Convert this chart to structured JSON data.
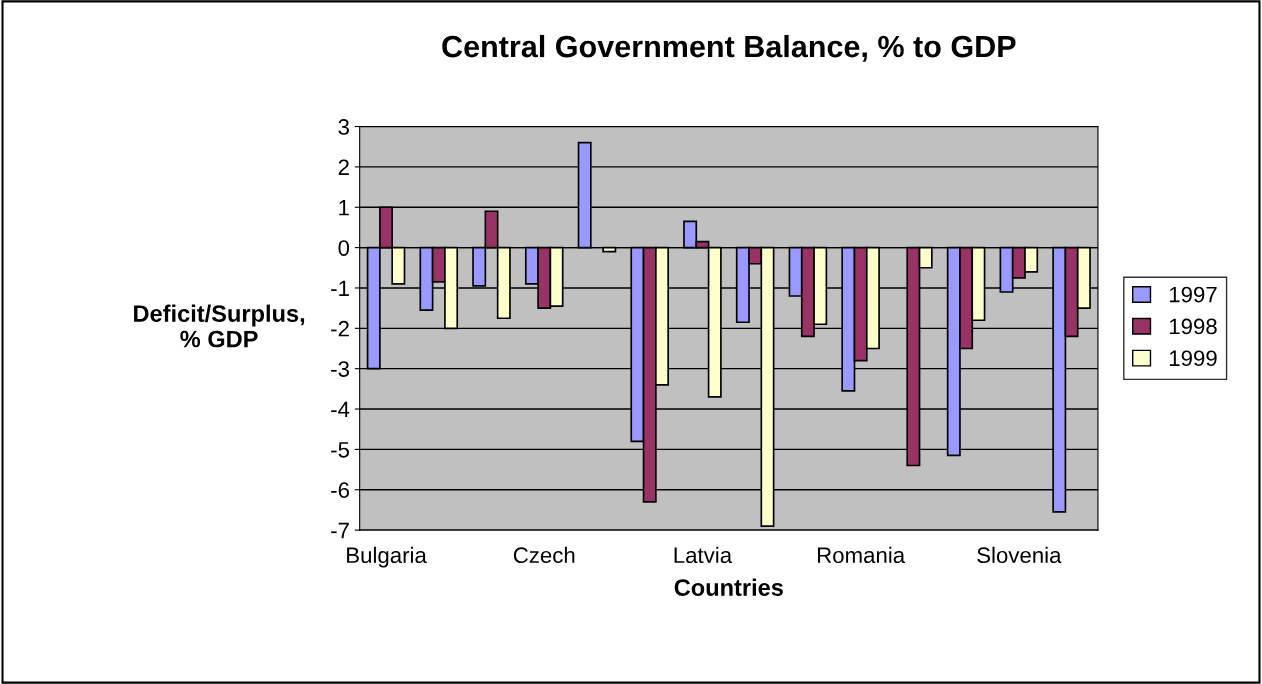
{
  "chart_data": {
    "type": "bar",
    "title": "Central Government Balance, % to GDP",
    "xlabel": "Countries",
    "ylabel": "Deficit/Surplus,\n% GDP",
    "categories": [
      "Bulgaria",
      null,
      null,
      "Czech",
      null,
      null,
      "Latvia",
      null,
      null,
      "Romania",
      null,
      null,
      "Slovenia",
      null
    ],
    "series": [
      {
        "name": "1997",
        "color": "#9999ff",
        "values": [
          -3.0,
          -1.55,
          -0.95,
          -0.9,
          2.6,
          -4.8,
          0.65,
          -1.85,
          -1.2,
          -3.55,
          null,
          -5.15,
          -1.1,
          -6.55
        ]
      },
      {
        "name": "1998",
        "color": "#993366",
        "values": [
          1.0,
          -0.85,
          0.9,
          -1.5,
          null,
          -6.3,
          0.15,
          -0.4,
          -2.2,
          -2.8,
          -5.4,
          -2.5,
          -0.75,
          -2.2
        ]
      },
      {
        "name": "1999",
        "color": "#ffffcc",
        "values": [
          -0.9,
          -2.0,
          -1.75,
          -1.45,
          -0.1,
          -3.4,
          -3.7,
          -6.9,
          -1.9,
          -2.5,
          -0.5,
          -1.8,
          -0.6,
          -1.5
        ]
      }
    ],
    "ylim": [
      -7,
      3
    ],
    "yticks": [
      -7,
      -6,
      -5,
      -4,
      -3,
      -2,
      -1,
      0,
      1,
      2,
      3
    ],
    "grid": "y",
    "legend": "right"
  }
}
